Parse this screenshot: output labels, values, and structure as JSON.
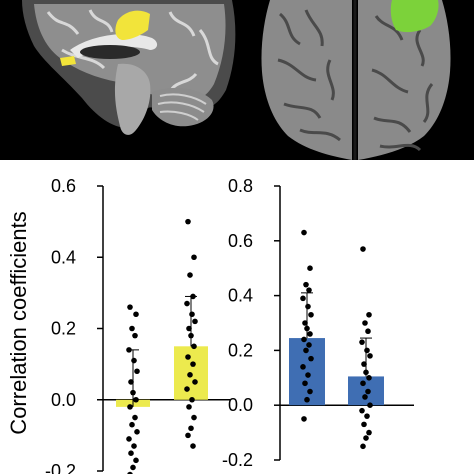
{
  "colors": {
    "left_bar": "#ecea4e",
    "right_bar": "#3f6eb3",
    "highlight_sagittal": "#f2e43a",
    "highlight_surface": "#7cd23a",
    "brain_tissue": "#9a9a9a",
    "background_top": "#000000"
  },
  "icons": {
    "sagittal": "brain-sagittal-slice-image",
    "surface": "brain-surface-render-image"
  },
  "ylabel": "Correlation coefficients",
  "chart_data": [
    {
      "type": "bar",
      "ylim": [
        -0.2,
        0.6
      ],
      "yticks": [
        "-0.2",
        "0.0",
        "0.2",
        "0.4",
        "0.6"
      ],
      "bar_values": [
        -0.02,
        0.15
      ],
      "error_upper": [
        0.14,
        0.29
      ],
      "bar_color": "#ecea4e",
      "points": [
        [
          0.26,
          0.24,
          0.2,
          0.18,
          0.14,
          0.11,
          0.08,
          0.05,
          0.02,
          0.0,
          -0.02,
          -0.05,
          -0.07,
          -0.09,
          -0.11,
          -0.13,
          -0.15,
          -0.17,
          -0.19,
          -0.21
        ],
        [
          0.5,
          0.4,
          0.35,
          0.29,
          0.27,
          0.24,
          0.22,
          0.2,
          0.18,
          0.15,
          0.12,
          0.1,
          0.07,
          0.05,
          0.03,
          0.0,
          -0.02,
          -0.05,
          -0.08,
          -0.1,
          -0.13
        ]
      ]
    },
    {
      "type": "bar",
      "ylim": [
        -0.2,
        0.8
      ],
      "yticks": [
        "-0.2",
        "0.0",
        "0.2",
        "0.4",
        "0.6",
        "0.8"
      ],
      "bar_values": [
        0.245,
        0.105
      ],
      "error_upper": [
        0.41,
        0.245
      ],
      "bar_color": "#3f6eb3",
      "points": [
        [
          0.63,
          0.5,
          0.44,
          0.42,
          0.39,
          0.36,
          0.33,
          0.3,
          0.28,
          0.26,
          0.24,
          0.22,
          0.2,
          0.17,
          0.14,
          0.11,
          0.08,
          0.05,
          0.02,
          -0.05
        ],
        [
          0.57,
          0.33,
          0.3,
          0.27,
          0.23,
          0.2,
          0.18,
          0.15,
          0.12,
          0.1,
          0.08,
          0.05,
          0.03,
          0.0,
          -0.02,
          -0.04,
          -0.07,
          -0.1,
          -0.12,
          -0.15
        ]
      ]
    }
  ]
}
